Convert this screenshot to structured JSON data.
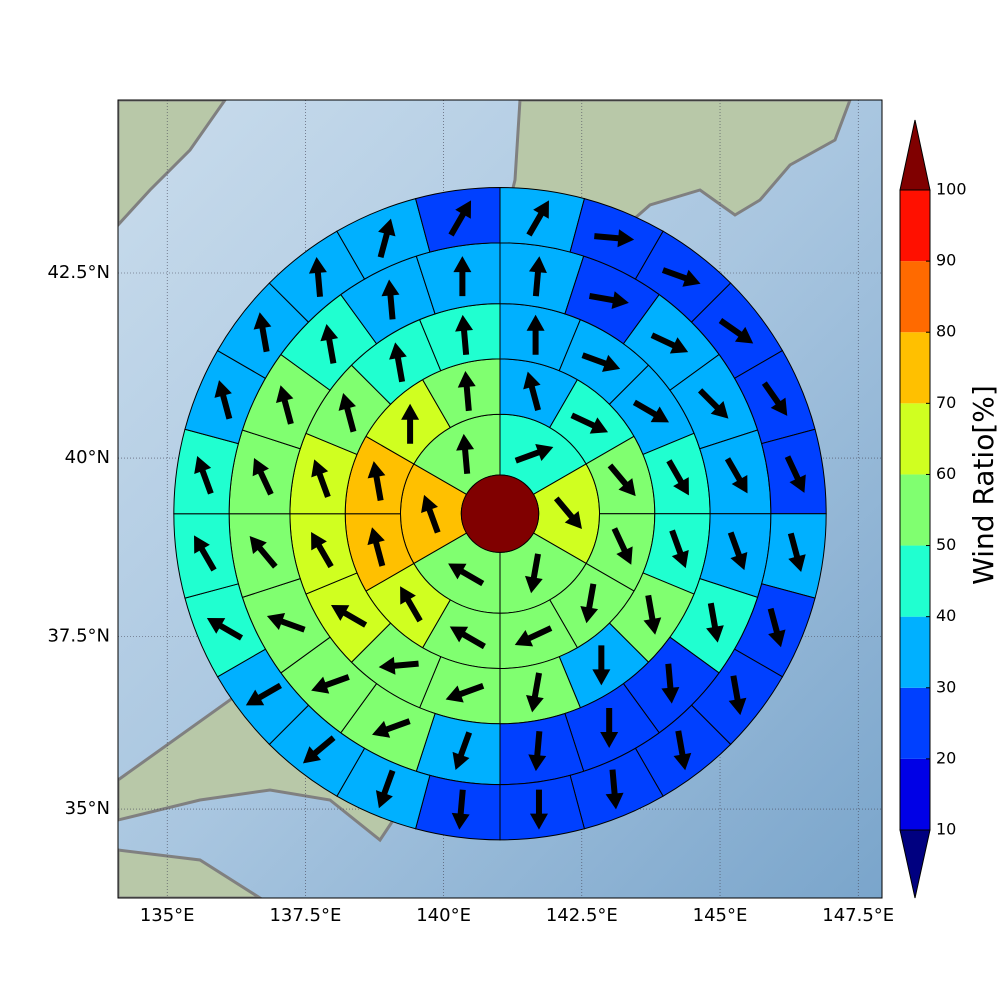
{
  "chart_data": {
    "type": "polar_map",
    "xlim": [
      134.11,
      147.93
    ],
    "ylim": [
      33.68,
      44.75
    ],
    "xticks": [
      {
        "value": 135,
        "label": "135°E"
      },
      {
        "value": 137.5,
        "label": "137.5°E"
      },
      {
        "value": 140,
        "label": "140°E"
      },
      {
        "value": 142.5,
        "label": "142.5°E"
      },
      {
        "value": 145,
        "label": "145°E"
      },
      {
        "value": 147.5,
        "label": "147.5°E"
      }
    ],
    "yticks": [
      {
        "value": 35,
        "label": "35°N"
      },
      {
        "value": 37.5,
        "label": "37.5°N"
      },
      {
        "value": 40,
        "label": "40°N"
      },
      {
        "value": 42.5,
        "label": "42.5°N"
      }
    ],
    "grid": true,
    "center": [
      141.02,
      39.23
    ],
    "center_value": 110,
    "radii": [
      0.7,
      1.8,
      2.8,
      3.8,
      4.9,
      5.9
    ],
    "rings": [
      {
        "values": [
          45,
          65,
          55,
          55,
          75,
          55
        ],
        "directions": [
          70,
          140,
          190,
          300,
          340,
          355
        ]
      },
      {
        "values": [
          35,
          45,
          55,
          55,
          55,
          55,
          55,
          65,
          75,
          75,
          65,
          55
        ],
        "directions": [
          345,
          115,
          140,
          155,
          190,
          245,
          300,
          330,
          345,
          350,
          0,
          355
        ]
      },
      {
        "values": [
          35,
          35,
          35,
          45,
          45,
          55,
          35,
          55,
          55,
          55,
          65,
          65,
          65,
          55,
          45,
          45
        ],
        "directions": [
          0,
          110,
          120,
          150,
          160,
          170,
          180,
          190,
          250,
          265,
          300,
          330,
          340,
          345,
          350,
          355
        ]
      },
      {
        "values": [
          35,
          25,
          35,
          35,
          35,
          35,
          45,
          25,
          25,
          25,
          35,
          55,
          55,
          55,
          55,
          55,
          55,
          45,
          35,
          35
        ],
        "directions": [
          5,
          100,
          115,
          135,
          150,
          160,
          170,
          175,
          180,
          185,
          200,
          250,
          250,
          290,
          320,
          335,
          345,
          350,
          355,
          0
        ]
      },
      {
        "values": [
          35,
          25,
          25,
          25,
          25,
          25,
          35,
          25,
          25,
          25,
          25,
          25,
          25,
          35,
          35,
          35,
          45,
          45,
          45,
          35,
          35,
          35,
          35,
          25
        ],
        "directions": [
          30,
          95,
          110,
          125,
          145,
          155,
          165,
          165,
          170,
          170,
          175,
          180,
          185,
          200,
          230,
          240,
          300,
          330,
          340,
          345,
          350,
          355,
          15,
          30
        ]
      }
    ],
    "colorbar": {
      "label": "Wind Ratio[%]",
      "levels": [
        10,
        20,
        30,
        40,
        50,
        60,
        70,
        80,
        90,
        100
      ],
      "colors": [
        "#0000e6",
        "#0040ff",
        "#00b0ff",
        "#20ffd0",
        "#80ff70",
        "#d0ff20",
        "#ffc000",
        "#ff6a00",
        "#ff1000"
      ],
      "under_color": "#000080",
      "over_color": "#800000"
    }
  }
}
